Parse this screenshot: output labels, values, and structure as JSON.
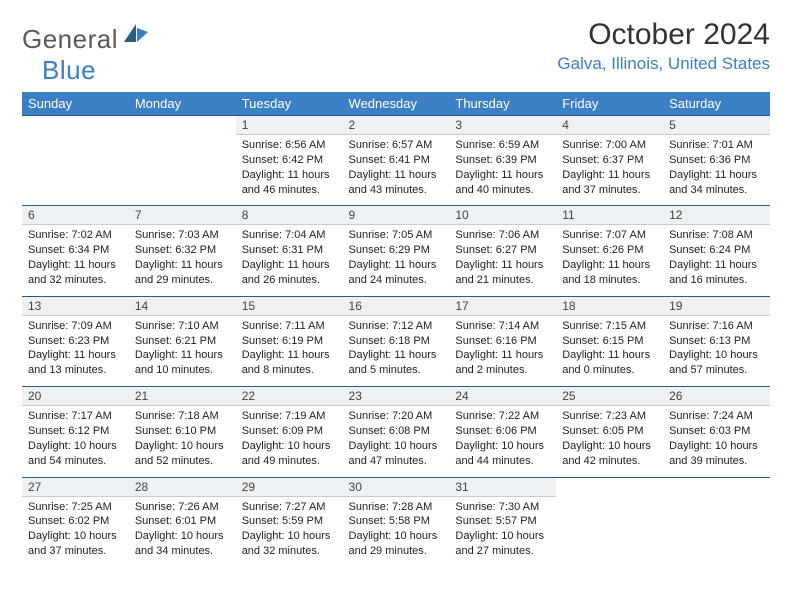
{
  "logo": {
    "general": "General",
    "blue": "Blue"
  },
  "title": "October 2024",
  "location": "Galva, Illinois, United States",
  "weekdays": [
    "Sunday",
    "Monday",
    "Tuesday",
    "Wednesday",
    "Thursday",
    "Friday",
    "Saturday"
  ],
  "colors": {
    "header_bg": "#3b7fc4",
    "daynum_bg": "#eef1f3",
    "border_dark": "#2a5c8a",
    "text": "#222222"
  },
  "weeks": [
    {
      "nums": [
        "",
        "",
        "1",
        "2",
        "3",
        "4",
        "5"
      ],
      "cells": [
        {
          "empty": true
        },
        {
          "empty": true
        },
        {
          "sunrise": "Sunrise: 6:56 AM",
          "sunset": "Sunset: 6:42 PM",
          "day1": "Daylight: 11 hours",
          "day2": "and 46 minutes."
        },
        {
          "sunrise": "Sunrise: 6:57 AM",
          "sunset": "Sunset: 6:41 PM",
          "day1": "Daylight: 11 hours",
          "day2": "and 43 minutes."
        },
        {
          "sunrise": "Sunrise: 6:59 AM",
          "sunset": "Sunset: 6:39 PM",
          "day1": "Daylight: 11 hours",
          "day2": "and 40 minutes."
        },
        {
          "sunrise": "Sunrise: 7:00 AM",
          "sunset": "Sunset: 6:37 PM",
          "day1": "Daylight: 11 hours",
          "day2": "and 37 minutes."
        },
        {
          "sunrise": "Sunrise: 7:01 AM",
          "sunset": "Sunset: 6:36 PM",
          "day1": "Daylight: 11 hours",
          "day2": "and 34 minutes."
        }
      ]
    },
    {
      "nums": [
        "6",
        "7",
        "8",
        "9",
        "10",
        "11",
        "12"
      ],
      "cells": [
        {
          "sunrise": "Sunrise: 7:02 AM",
          "sunset": "Sunset: 6:34 PM",
          "day1": "Daylight: 11 hours",
          "day2": "and 32 minutes."
        },
        {
          "sunrise": "Sunrise: 7:03 AM",
          "sunset": "Sunset: 6:32 PM",
          "day1": "Daylight: 11 hours",
          "day2": "and 29 minutes."
        },
        {
          "sunrise": "Sunrise: 7:04 AM",
          "sunset": "Sunset: 6:31 PM",
          "day1": "Daylight: 11 hours",
          "day2": "and 26 minutes."
        },
        {
          "sunrise": "Sunrise: 7:05 AM",
          "sunset": "Sunset: 6:29 PM",
          "day1": "Daylight: 11 hours",
          "day2": "and 24 minutes."
        },
        {
          "sunrise": "Sunrise: 7:06 AM",
          "sunset": "Sunset: 6:27 PM",
          "day1": "Daylight: 11 hours",
          "day2": "and 21 minutes."
        },
        {
          "sunrise": "Sunrise: 7:07 AM",
          "sunset": "Sunset: 6:26 PM",
          "day1": "Daylight: 11 hours",
          "day2": "and 18 minutes."
        },
        {
          "sunrise": "Sunrise: 7:08 AM",
          "sunset": "Sunset: 6:24 PM",
          "day1": "Daylight: 11 hours",
          "day2": "and 16 minutes."
        }
      ]
    },
    {
      "nums": [
        "13",
        "14",
        "15",
        "16",
        "17",
        "18",
        "19"
      ],
      "cells": [
        {
          "sunrise": "Sunrise: 7:09 AM",
          "sunset": "Sunset: 6:23 PM",
          "day1": "Daylight: 11 hours",
          "day2": "and 13 minutes."
        },
        {
          "sunrise": "Sunrise: 7:10 AM",
          "sunset": "Sunset: 6:21 PM",
          "day1": "Daylight: 11 hours",
          "day2": "and 10 minutes."
        },
        {
          "sunrise": "Sunrise: 7:11 AM",
          "sunset": "Sunset: 6:19 PM",
          "day1": "Daylight: 11 hours",
          "day2": "and 8 minutes."
        },
        {
          "sunrise": "Sunrise: 7:12 AM",
          "sunset": "Sunset: 6:18 PM",
          "day1": "Daylight: 11 hours",
          "day2": "and 5 minutes."
        },
        {
          "sunrise": "Sunrise: 7:14 AM",
          "sunset": "Sunset: 6:16 PM",
          "day1": "Daylight: 11 hours",
          "day2": "and 2 minutes."
        },
        {
          "sunrise": "Sunrise: 7:15 AM",
          "sunset": "Sunset: 6:15 PM",
          "day1": "Daylight: 11 hours",
          "day2": "and 0 minutes."
        },
        {
          "sunrise": "Sunrise: 7:16 AM",
          "sunset": "Sunset: 6:13 PM",
          "day1": "Daylight: 10 hours",
          "day2": "and 57 minutes."
        }
      ]
    },
    {
      "nums": [
        "20",
        "21",
        "22",
        "23",
        "24",
        "25",
        "26"
      ],
      "cells": [
        {
          "sunrise": "Sunrise: 7:17 AM",
          "sunset": "Sunset: 6:12 PM",
          "day1": "Daylight: 10 hours",
          "day2": "and 54 minutes."
        },
        {
          "sunrise": "Sunrise: 7:18 AM",
          "sunset": "Sunset: 6:10 PM",
          "day1": "Daylight: 10 hours",
          "day2": "and 52 minutes."
        },
        {
          "sunrise": "Sunrise: 7:19 AM",
          "sunset": "Sunset: 6:09 PM",
          "day1": "Daylight: 10 hours",
          "day2": "and 49 minutes."
        },
        {
          "sunrise": "Sunrise: 7:20 AM",
          "sunset": "Sunset: 6:08 PM",
          "day1": "Daylight: 10 hours",
          "day2": "and 47 minutes."
        },
        {
          "sunrise": "Sunrise: 7:22 AM",
          "sunset": "Sunset: 6:06 PM",
          "day1": "Daylight: 10 hours",
          "day2": "and 44 minutes."
        },
        {
          "sunrise": "Sunrise: 7:23 AM",
          "sunset": "Sunset: 6:05 PM",
          "day1": "Daylight: 10 hours",
          "day2": "and 42 minutes."
        },
        {
          "sunrise": "Sunrise: 7:24 AM",
          "sunset": "Sunset: 6:03 PM",
          "day1": "Daylight: 10 hours",
          "day2": "and 39 minutes."
        }
      ]
    },
    {
      "nums": [
        "27",
        "28",
        "29",
        "30",
        "31",
        "",
        ""
      ],
      "cells": [
        {
          "sunrise": "Sunrise: 7:25 AM",
          "sunset": "Sunset: 6:02 PM",
          "day1": "Daylight: 10 hours",
          "day2": "and 37 minutes."
        },
        {
          "sunrise": "Sunrise: 7:26 AM",
          "sunset": "Sunset: 6:01 PM",
          "day1": "Daylight: 10 hours",
          "day2": "and 34 minutes."
        },
        {
          "sunrise": "Sunrise: 7:27 AM",
          "sunset": "Sunset: 5:59 PM",
          "day1": "Daylight: 10 hours",
          "day2": "and 32 minutes."
        },
        {
          "sunrise": "Sunrise: 7:28 AM",
          "sunset": "Sunset: 5:58 PM",
          "day1": "Daylight: 10 hours",
          "day2": "and 29 minutes."
        },
        {
          "sunrise": "Sunrise: 7:30 AM",
          "sunset": "Sunset: 5:57 PM",
          "day1": "Daylight: 10 hours",
          "day2": "and 27 minutes."
        },
        {
          "empty": true
        },
        {
          "empty": true
        }
      ]
    }
  ]
}
